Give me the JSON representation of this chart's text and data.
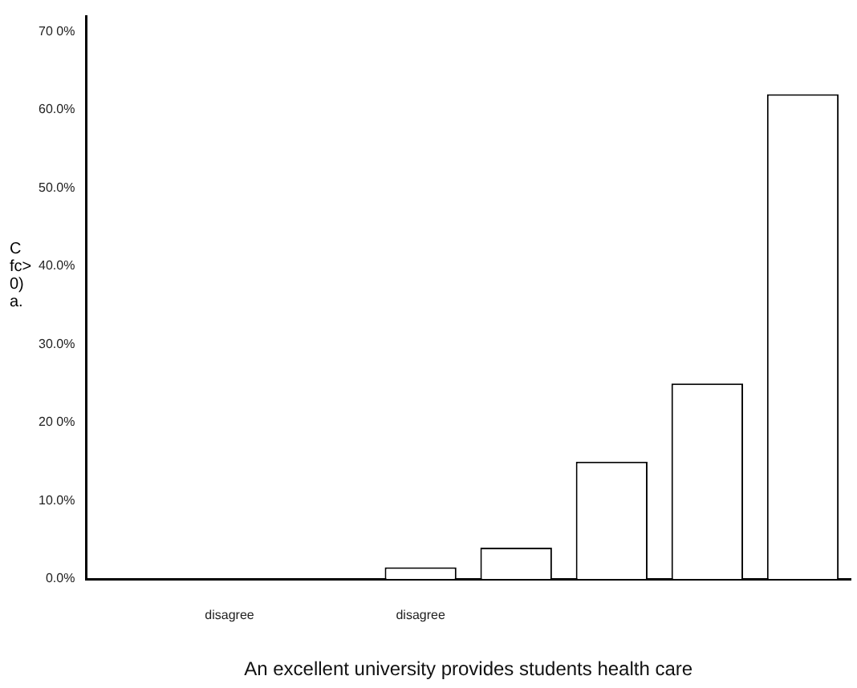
{
  "chart_data": {
    "type": "bar",
    "xlabel": "An excellent university provides students health care",
    "ylabel": "C fc> 0) a.",
    "categories": [
      null,
      "disagree",
      null,
      "disagree",
      null,
      null,
      null,
      null
    ],
    "values": [
      0,
      0,
      0,
      1.5,
      4,
      15,
      25,
      62
    ],
    "color": "#ffffff",
    "ylim": [
      0,
      72
    ],
    "yticks": [
      {
        "value": 0,
        "label": "0.0%"
      },
      {
        "value": 10,
        "label": "10.0%"
      },
      {
        "value": 20,
        "label": "20 0%"
      },
      {
        "value": 30,
        "label": "30.0%"
      },
      {
        "value": 40,
        "label": "40.0%"
      },
      {
        "value": 50,
        "label": "50.0%"
      },
      {
        "value": 60,
        "label": "60.0%"
      },
      {
        "value": 70,
        "label": "70 0%"
      }
    ],
    "grid": false,
    "legend": false
  }
}
